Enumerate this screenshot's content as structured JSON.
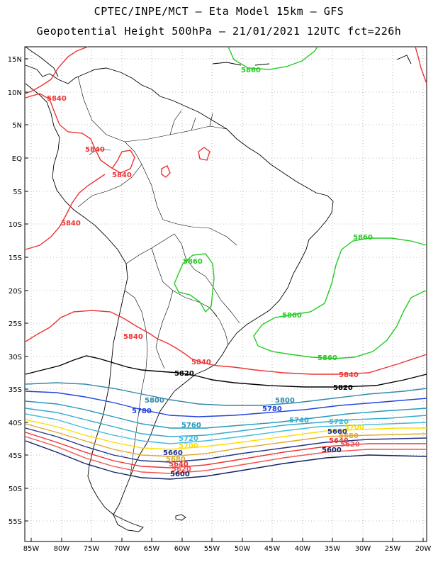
{
  "header": {
    "line1": "CPTEC/INPE/MCT –  Eta Model 15km – GFS",
    "line2": "Geopotential Height 500hPa – 21/01/2021 12UTC fct=226h"
  },
  "axes": {
    "lat_labels": [
      "15N",
      "10N",
      "5N",
      "EQ",
      "5S",
      "10S",
      "15S",
      "20S",
      "25S",
      "30S",
      "35S",
      "40S",
      "45S",
      "50S",
      "55S"
    ],
    "lon_labels": [
      "85W",
      "80W",
      "75W",
      "70W",
      "65W",
      "60W",
      "55W",
      "50W",
      "45W",
      "40W",
      "35W",
      "30W",
      "25W",
      "20W"
    ]
  },
  "colors": {
    "c5860": "#22cc22",
    "c5840": "#ee3333",
    "c5820": "#000000",
    "c5800": "#3388aa",
    "c5780": "#2244dd",
    "c5760": "#2299bb",
    "c5740": "#33aacc",
    "c5720": "#44bbdd",
    "c5700": "#ffdd00",
    "c5680": "#ddaa33",
    "c5660": "#223388",
    "c5640": "#ee3333",
    "c5620": "#ee5555",
    "c5600": "#112266"
  },
  "contour_labels": [
    {
      "text": "5860",
      "color": "#22cc22"
    },
    {
      "text": "5840",
      "color": "#ee3333"
    },
    {
      "text": "5840",
      "color": "#ee3333"
    },
    {
      "text": "5840",
      "color": "#ee3333"
    },
    {
      "text": "5840",
      "color": "#ee3333"
    },
    {
      "text": "5860",
      "color": "#22cc22"
    },
    {
      "text": "5860",
      "color": "#22cc22"
    },
    {
      "text": "5860",
      "color": "#22cc22"
    },
    {
      "text": "5860",
      "color": "#22cc22"
    },
    {
      "text": "5840",
      "color": "#ee3333"
    },
    {
      "text": "5840",
      "color": "#ee3333"
    },
    {
      "text": "5840",
      "color": "#ee3333"
    },
    {
      "text": "5820",
      "color": "#000000"
    },
    {
      "text": "5820",
      "color": "#000000"
    },
    {
      "text": "5800",
      "color": "#3388aa"
    },
    {
      "text": "5800",
      "color": "#3388aa"
    },
    {
      "text": "5780",
      "color": "#2244dd"
    },
    {
      "text": "5780",
      "color": "#2244dd"
    },
    {
      "text": "5760",
      "color": "#2299bb"
    },
    {
      "text": "5740",
      "color": "#33aacc"
    },
    {
      "text": "5720",
      "color": "#44bbdd"
    },
    {
      "text": "5720",
      "color": "#44bbdd"
    },
    {
      "text": "5700",
      "color": "#ffdd00"
    },
    {
      "text": "5700",
      "color": "#ffdd00"
    },
    {
      "text": "5680",
      "color": "#ddaa33"
    },
    {
      "text": "5680",
      "color": "#ddaa33"
    },
    {
      "text": "5660",
      "color": "#223388"
    },
    {
      "text": "5660",
      "color": "#223388"
    },
    {
      "text": "5640",
      "color": "#ee3333"
    },
    {
      "text": "5640",
      "color": "#ee3333"
    },
    {
      "text": "5620",
      "color": "#ee5555"
    },
    {
      "text": "5620",
      "color": "#ee5555"
    },
    {
      "text": "5600",
      "color": "#112266"
    },
    {
      "text": "5600",
      "color": "#112266"
    }
  ]
}
